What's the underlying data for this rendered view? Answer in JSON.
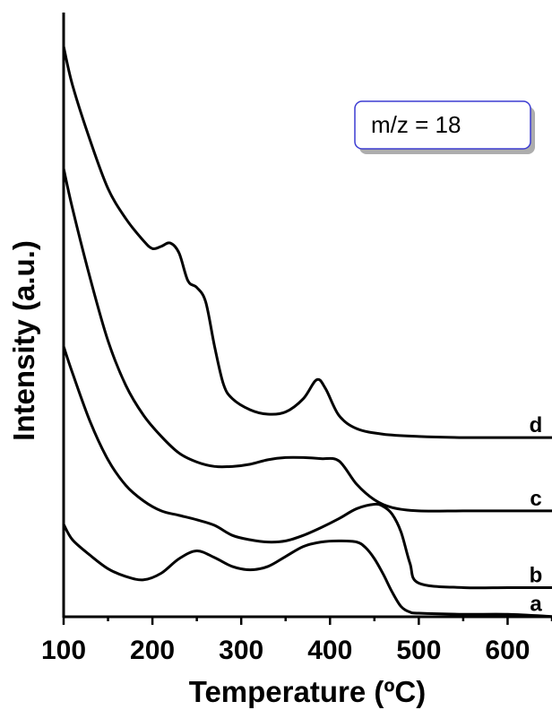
{
  "chart_data": {
    "type": "line",
    "xlabel": "Temperature (ºC)",
    "ylabel": "Intensity (a.u.)",
    "xlim": [
      100,
      650
    ],
    "x_ticks": [
      "100",
      "200",
      "300",
      "400",
      "500",
      "600"
    ],
    "y_ticks_shown": false,
    "y_units": "offset intensity (a.u.)",
    "annotation": "m/z = 18",
    "grid": false,
    "legend": "none",
    "series": [
      {
        "name": "a",
        "x": [
          100,
          110,
          130,
          150,
          170,
          190,
          210,
          230,
          250,
          270,
          290,
          310,
          330,
          350,
          370,
          390,
          410,
          430,
          440,
          450,
          460,
          470,
          480,
          490,
          500,
          550,
          600,
          650
        ],
        "y": [
          8.0,
          6.6,
          5.2,
          4.0,
          3.3,
          3.0,
          3.6,
          4.9,
          5.6,
          5.0,
          4.2,
          3.9,
          4.2,
          5.1,
          6.0,
          6.4,
          6.5,
          6.4,
          5.9,
          4.9,
          3.5,
          1.9,
          0.6,
          0.1,
          0.0,
          -0.1,
          -0.1,
          -0.3
        ]
      },
      {
        "name": "b",
        "x": [
          100,
          110,
          130,
          150,
          170,
          190,
          210,
          230,
          250,
          270,
          290,
          310,
          330,
          350,
          370,
          390,
          410,
          430,
          450,
          460,
          470,
          480,
          490,
          500,
          550,
          600,
          650
        ],
        "y": [
          24.0,
          21.6,
          17.2,
          13.8,
          11.5,
          10.1,
          9.2,
          8.8,
          8.4,
          7.9,
          7.0,
          6.6,
          6.4,
          6.5,
          7.0,
          7.7,
          8.5,
          9.4,
          9.8,
          9.6,
          8.9,
          7.3,
          4.5,
          2.7,
          2.3,
          2.3,
          2.3
        ]
      },
      {
        "name": "c",
        "x": [
          100,
          110,
          130,
          150,
          170,
          190,
          210,
          230,
          250,
          270,
          290,
          310,
          330,
          350,
          370,
          390,
          410,
          430,
          450,
          470,
          500,
          550,
          600,
          650
        ],
        "y": [
          40.0,
          36.4,
          30.1,
          24.5,
          20.5,
          17.8,
          15.9,
          14.4,
          13.6,
          13.2,
          13.2,
          13.4,
          13.8,
          14.0,
          14.0,
          13.9,
          13.7,
          11.6,
          10.2,
          9.5,
          9.2,
          9.2,
          9.2,
          9.2
        ]
      },
      {
        "name": "d",
        "x": [
          100,
          110,
          130,
          150,
          170,
          190,
          200,
          210,
          220,
          230,
          240,
          250,
          260,
          270,
          280,
          290,
          310,
          330,
          350,
          370,
          385,
          395,
          410,
          430,
          460,
          500,
          550,
          600,
          650
        ],
        "y": [
          51.0,
          47.5,
          42.5,
          38.2,
          35.5,
          33.5,
          32.8,
          33.0,
          33.3,
          32.4,
          29.9,
          29.3,
          28.0,
          24.0,
          20.6,
          19.3,
          18.3,
          17.9,
          18.1,
          19.3,
          21.0,
          20.2,
          17.8,
          16.6,
          16.1,
          15.9,
          15.8,
          15.8,
          15.8
        ]
      }
    ]
  }
}
